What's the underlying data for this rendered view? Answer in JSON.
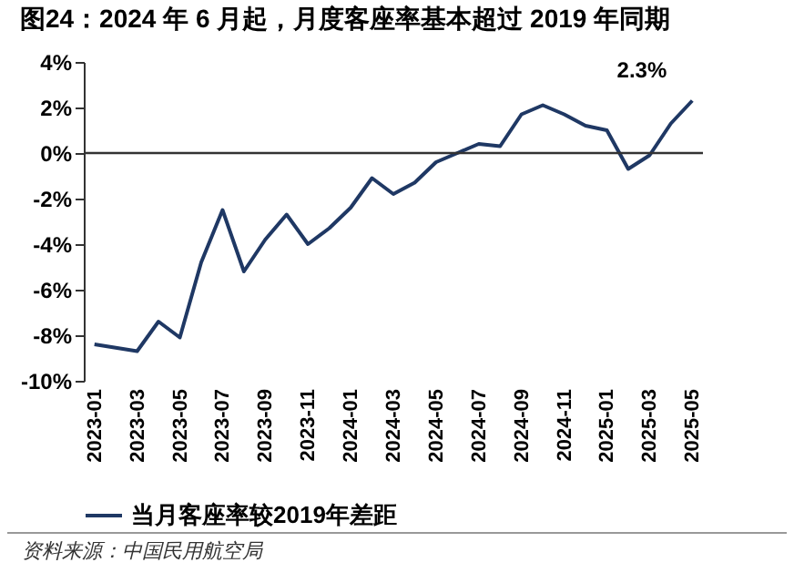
{
  "chart_data": {
    "type": "line",
    "title": "图24：2024 年 6 月起，月度客座率基本超过 2019 年同期",
    "categories": [
      "2023-01",
      null,
      "2023-03",
      null,
      "2023-05",
      null,
      "2023-07",
      null,
      "2023-09",
      null,
      "2023-11",
      null,
      "2024-01",
      null,
      "2024-03",
      null,
      "2024-05",
      null,
      "2024-07",
      null,
      "2024-09",
      null,
      "2024-11",
      null,
      "2025-01",
      null,
      "2025-03",
      null,
      "2025-05"
    ],
    "series": [
      {
        "name": "当月客座率较2019年差距",
        "color": "#1f3864",
        "values": [
          -8.4,
          -8.55,
          -8.7,
          -7.4,
          -8.1,
          -4.8,
          -2.5,
          -5.2,
          -3.8,
          -2.7,
          -4.0,
          -3.3,
          -2.4,
          -1.1,
          -1.8,
          -1.3,
          -0.4,
          0.0,
          0.4,
          0.3,
          1.7,
          2.1,
          1.7,
          1.2,
          1.0,
          -0.7,
          -0.1,
          1.3,
          2.3
        ]
      }
    ],
    "ylim": [
      -10,
      4
    ],
    "yticks": [
      {
        "value": -10,
        "label": "-10%"
      },
      {
        "value": -8,
        "label": "-8%"
      },
      {
        "value": -6,
        "label": "-6%"
      },
      {
        "value": -4,
        "label": "-4%"
      },
      {
        "value": -2,
        "label": "-2%"
      },
      {
        "value": 0,
        "label": "0%"
      },
      {
        "value": 2,
        "label": "2%"
      },
      {
        "value": 4,
        "label": "4%"
      }
    ],
    "annotations": [
      {
        "text": "2.3%",
        "x": "2025-05",
        "y": 2.3
      },
      "资料来源：中国民用航空局"
    ],
    "ref_lines": [
      {
        "axis": "y",
        "value": 0,
        "color": "#333333"
      }
    ],
    "legend": "bottom",
    "grid": false,
    "marker": "none",
    "line_style": "solid"
  }
}
